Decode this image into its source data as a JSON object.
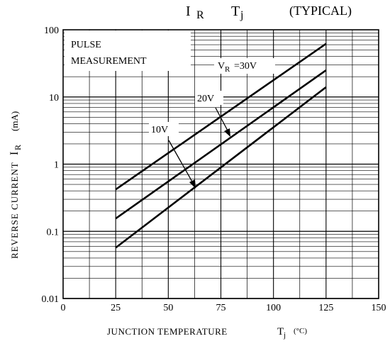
{
  "chart_data": {
    "type": "line",
    "title_parts": [
      "I",
      "R",
      "T",
      "j",
      "(TYPICAL)"
    ],
    "xlabel": "JUNCTION TEMPERATURE",
    "xlabel_symbol": "T",
    "xlabel_sub": "j",
    "xlabel_unit": "(°C)",
    "ylabel": "REVERSE CURRENT",
    "ylabel_symbol": "I",
    "ylabel_sub": "R",
    "ylabel_unit": "(mA)",
    "x_ticks": [
      "0",
      "25",
      "50",
      "75",
      "100",
      "125",
      "150"
    ],
    "y_ticks": [
      "0.01",
      "0.1",
      "1",
      "10",
      "100"
    ],
    "xlim": [
      0,
      150
    ],
    "ylim": [
      0.01,
      100
    ],
    "yscale": "log",
    "grid": true,
    "annotation_box": [
      "PULSE",
      "MEASUREMENT"
    ],
    "series": [
      {
        "label": "V",
        "label_sub": "R",
        "label_value": "=30V",
        "x": [
          25,
          125
        ],
        "y": [
          0.42,
          62
        ]
      },
      {
        "label": "20V",
        "x": [
          25,
          125
        ],
        "y": [
          0.155,
          25
        ]
      },
      {
        "label": "10V",
        "x": [
          25,
          125
        ],
        "y": [
          0.057,
          14
        ]
      }
    ]
  }
}
